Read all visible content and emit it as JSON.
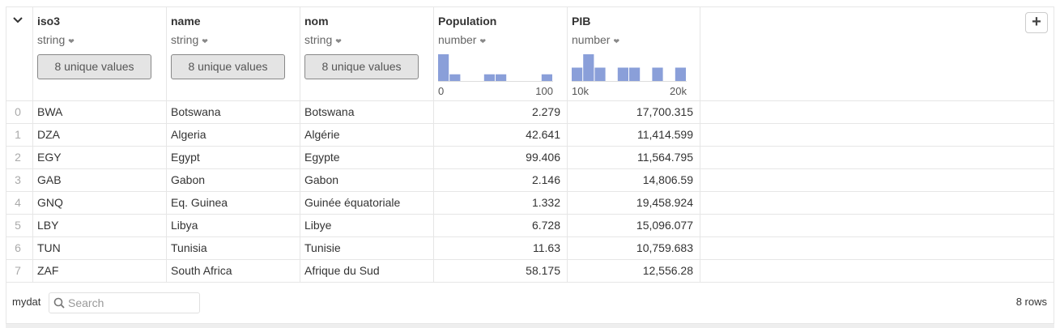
{
  "add_button": "+",
  "columns": [
    {
      "name": "iso3",
      "type": "string",
      "summary": "8 unique values"
    },
    {
      "name": "name",
      "type": "string",
      "summary": "8 unique values"
    },
    {
      "name": "nom",
      "type": "string",
      "summary": "8 unique values"
    },
    {
      "name": "Population",
      "type": "number",
      "histogram": {
        "bins": [
          0,
          10,
          20,
          30,
          40,
          50,
          60,
          70,
          80,
          90,
          100
        ],
        "counts": [
          4,
          1,
          0,
          0,
          1,
          1,
          0,
          0,
          0,
          1
        ],
        "ticks": [
          0,
          100
        ]
      }
    },
    {
      "name": "PIB",
      "type": "number",
      "histogram": {
        "bins": [
          10000,
          11000,
          12000,
          13000,
          14000,
          15000,
          16000,
          17000,
          18000,
          19000,
          20000
        ],
        "counts": [
          1,
          2,
          1,
          0,
          1,
          1,
          0,
          1,
          0,
          1
        ],
        "ticks": [
          {
            "value": 10000,
            "label": "10k"
          },
          {
            "value": 20000,
            "label": "20k"
          }
        ]
      }
    }
  ],
  "rows": [
    [
      "0",
      "BWA",
      "Botswana",
      "Botswana",
      "2.279",
      "17,700.315"
    ],
    [
      "1",
      "DZA",
      "Algeria",
      "Algérie",
      "42.641",
      "11,414.599"
    ],
    [
      "2",
      "EGY",
      "Egypt",
      "Egypte",
      "99.406",
      "11,564.795"
    ],
    [
      "3",
      "GAB",
      "Gabon",
      "Gabon",
      "2.146",
      "14,806.59"
    ],
    [
      "4",
      "GNQ",
      "Eq. Guinea",
      "Guinée équatoriale",
      "1.332",
      "19,458.924"
    ],
    [
      "5",
      "LBY",
      "Libya",
      "Libye",
      "6.728",
      "15,096.077"
    ],
    [
      "6",
      "TUN",
      "Tunisia",
      "Tunisie",
      "11.63",
      "10,759.683"
    ],
    [
      "7",
      "ZAF",
      "South Africa",
      "Afrique du Sud",
      "58.175",
      "12,556.28"
    ]
  ],
  "footer": {
    "name": "mydat",
    "search_placeholder": "Search",
    "row_count": "8 rows"
  }
}
